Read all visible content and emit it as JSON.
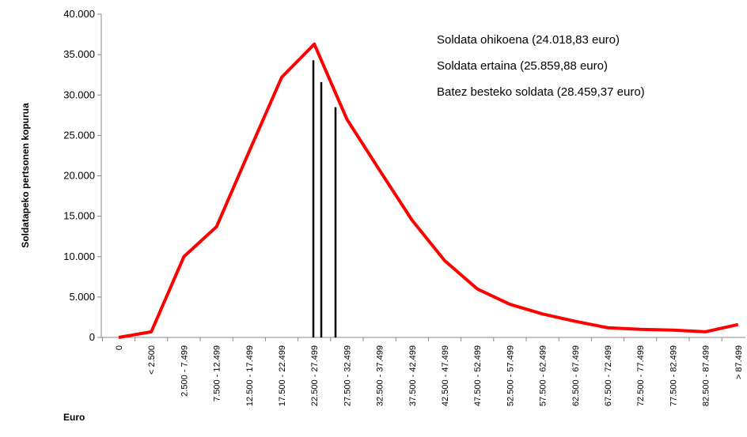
{
  "chart_data": {
    "type": "line",
    "y_label": "Soldatapeko pertsonen kopurua",
    "x_label": "Euro",
    "categories": [
      "0",
      "< 2.500",
      "2.500  -  7.499",
      "7.500  -  12.499",
      "12.500  -  17.499",
      "17.500  -  22.499",
      "22.500  -  27.499",
      "27.500  -  32.499",
      "32.500  -  37.499",
      "37.500  -  42.499",
      "42.500  -  47.499",
      "47.500  -  52.499",
      "52.500  -  57.499",
      "57.500  -  62.499",
      "62.500  -  67.499",
      "67.500  -  72.499",
      "72.500  -  77.499",
      "77.500  -  82.499",
      "82.500  -  87.499",
      "> 87.499"
    ],
    "series": [
      {
        "color": "#ff0000",
        "values": [
          0,
          700,
          10000,
          13700,
          23000,
          32200,
          36300,
          27000,
          20700,
          14500,
          9500,
          6000,
          4100,
          2900,
          2000,
          1200,
          1000,
          900,
          700,
          1600
        ]
      }
    ],
    "annotations": [
      {
        "label": "Soldata ohikoena (24.018,83  euro)",
        "value": 34300
      },
      {
        "label": "Soldata ertaina (25.859,88  euro)",
        "value": 31600
      },
      {
        "label": "Batez besteko soldata (28.459,37  euro)",
        "value": 28500
      }
    ],
    "annotation_color": "#000000",
    "ylim": [
      0,
      40000
    ],
    "yticks": [
      0,
      {
        "value": 5000,
        "label": "5.000"
      },
      {
        "value": 10000,
        "label": "10.000"
      },
      {
        "value": 15000,
        "label": "15.000"
      },
      {
        "value": 20000,
        "label": "20.000"
      },
      {
        "value": 25000,
        "label": "25.000"
      },
      {
        "value": 30000,
        "label": "30.000"
      },
      {
        "value": 35000,
        "label": "35.000"
      },
      {
        "value": 40000,
        "label": "40.000"
      }
    ],
    "grid": false
  }
}
